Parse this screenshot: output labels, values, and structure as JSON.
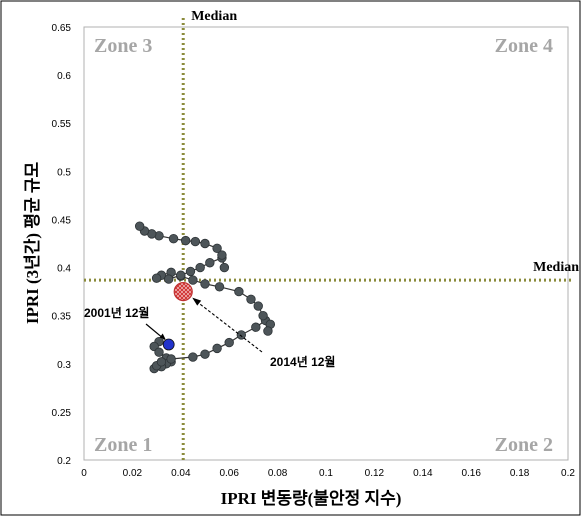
{
  "chart_data": {
    "type": "scatter",
    "xlabel": "IPRI 변동량(불안정 지수)",
    "ylabel": "IPRI (3년간) 평균 규모",
    "xlim": [
      0,
      0.2
    ],
    "ylim": [
      0.2,
      0.65
    ],
    "x_ticks": [
      "0",
      "0.02",
      "0.04",
      "0.06",
      "0.08",
      "0.1",
      "0.12",
      "0.14",
      "0.16",
      "0.18",
      "0.2"
    ],
    "y_ticks": [
      "0.2",
      "0.25",
      "0.3",
      "0.35",
      "0.4",
      "0.45",
      "0.5",
      "0.55",
      "0.6",
      "0.65"
    ],
    "grid": false,
    "medians": {
      "x": 0.041,
      "y": 0.387,
      "x_label": "Median",
      "y_label": "Median"
    },
    "zones": [
      {
        "label": "Zone 3",
        "position": "top-left"
      },
      {
        "label": "Zone 4",
        "position": "top-right"
      },
      {
        "label": "Zone 1",
        "position": "bottom-left"
      },
      {
        "label": "Zone 2",
        "position": "bottom-right"
      }
    ],
    "series": [
      {
        "x": [
          0.035,
          0.031,
          0.029,
          0.031,
          0.034,
          0.036,
          0.034,
          0.032,
          0.029,
          0.03,
          0.032,
          0.036,
          0.045,
          0.05,
          0.055,
          0.06,
          0.065,
          0.071,
          0.075,
          0.077,
          0.076,
          0.074,
          0.072,
          0.069,
          0.064,
          0.056,
          0.05,
          0.045,
          0.04,
          0.036,
          0.032,
          0.03,
          0.035,
          0.04,
          0.044,
          0.048,
          0.052,
          0.057,
          0.058,
          0.057,
          0.055,
          0.05,
          0.046,
          0.042,
          0.037,
          0.031,
          0.028,
          0.025,
          0.023
        ],
        "y": [
          0.32,
          0.323,
          0.318,
          0.312,
          0.306,
          0.302,
          0.3,
          0.297,
          0.295,
          0.298,
          0.302,
          0.305,
          0.307,
          0.31,
          0.316,
          0.322,
          0.33,
          0.338,
          0.345,
          0.341,
          0.334,
          0.35,
          0.36,
          0.367,
          0.375,
          0.38,
          0.383,
          0.387,
          0.391,
          0.395,
          0.392,
          0.389,
          0.388,
          0.392,
          0.396,
          0.4,
          0.405,
          0.41,
          0.4,
          0.413,
          0.42,
          0.425,
          0.427,
          0.428,
          0.43,
          0.433,
          0.435,
          0.438,
          0.443
        ]
      }
    ],
    "highlights": [
      {
        "label": "2001년 12월",
        "x": 0.035,
        "y": 0.32,
        "color": "#2233cc"
      },
      {
        "label": "2014년 12월",
        "x": 0.041,
        "y": 0.375,
        "color": "#e05050"
      }
    ],
    "colors": {
      "point": "#4d5559",
      "median_line": "#8b8b3c",
      "zone_text": "#a6a6a6",
      "frame": "#000000"
    }
  }
}
